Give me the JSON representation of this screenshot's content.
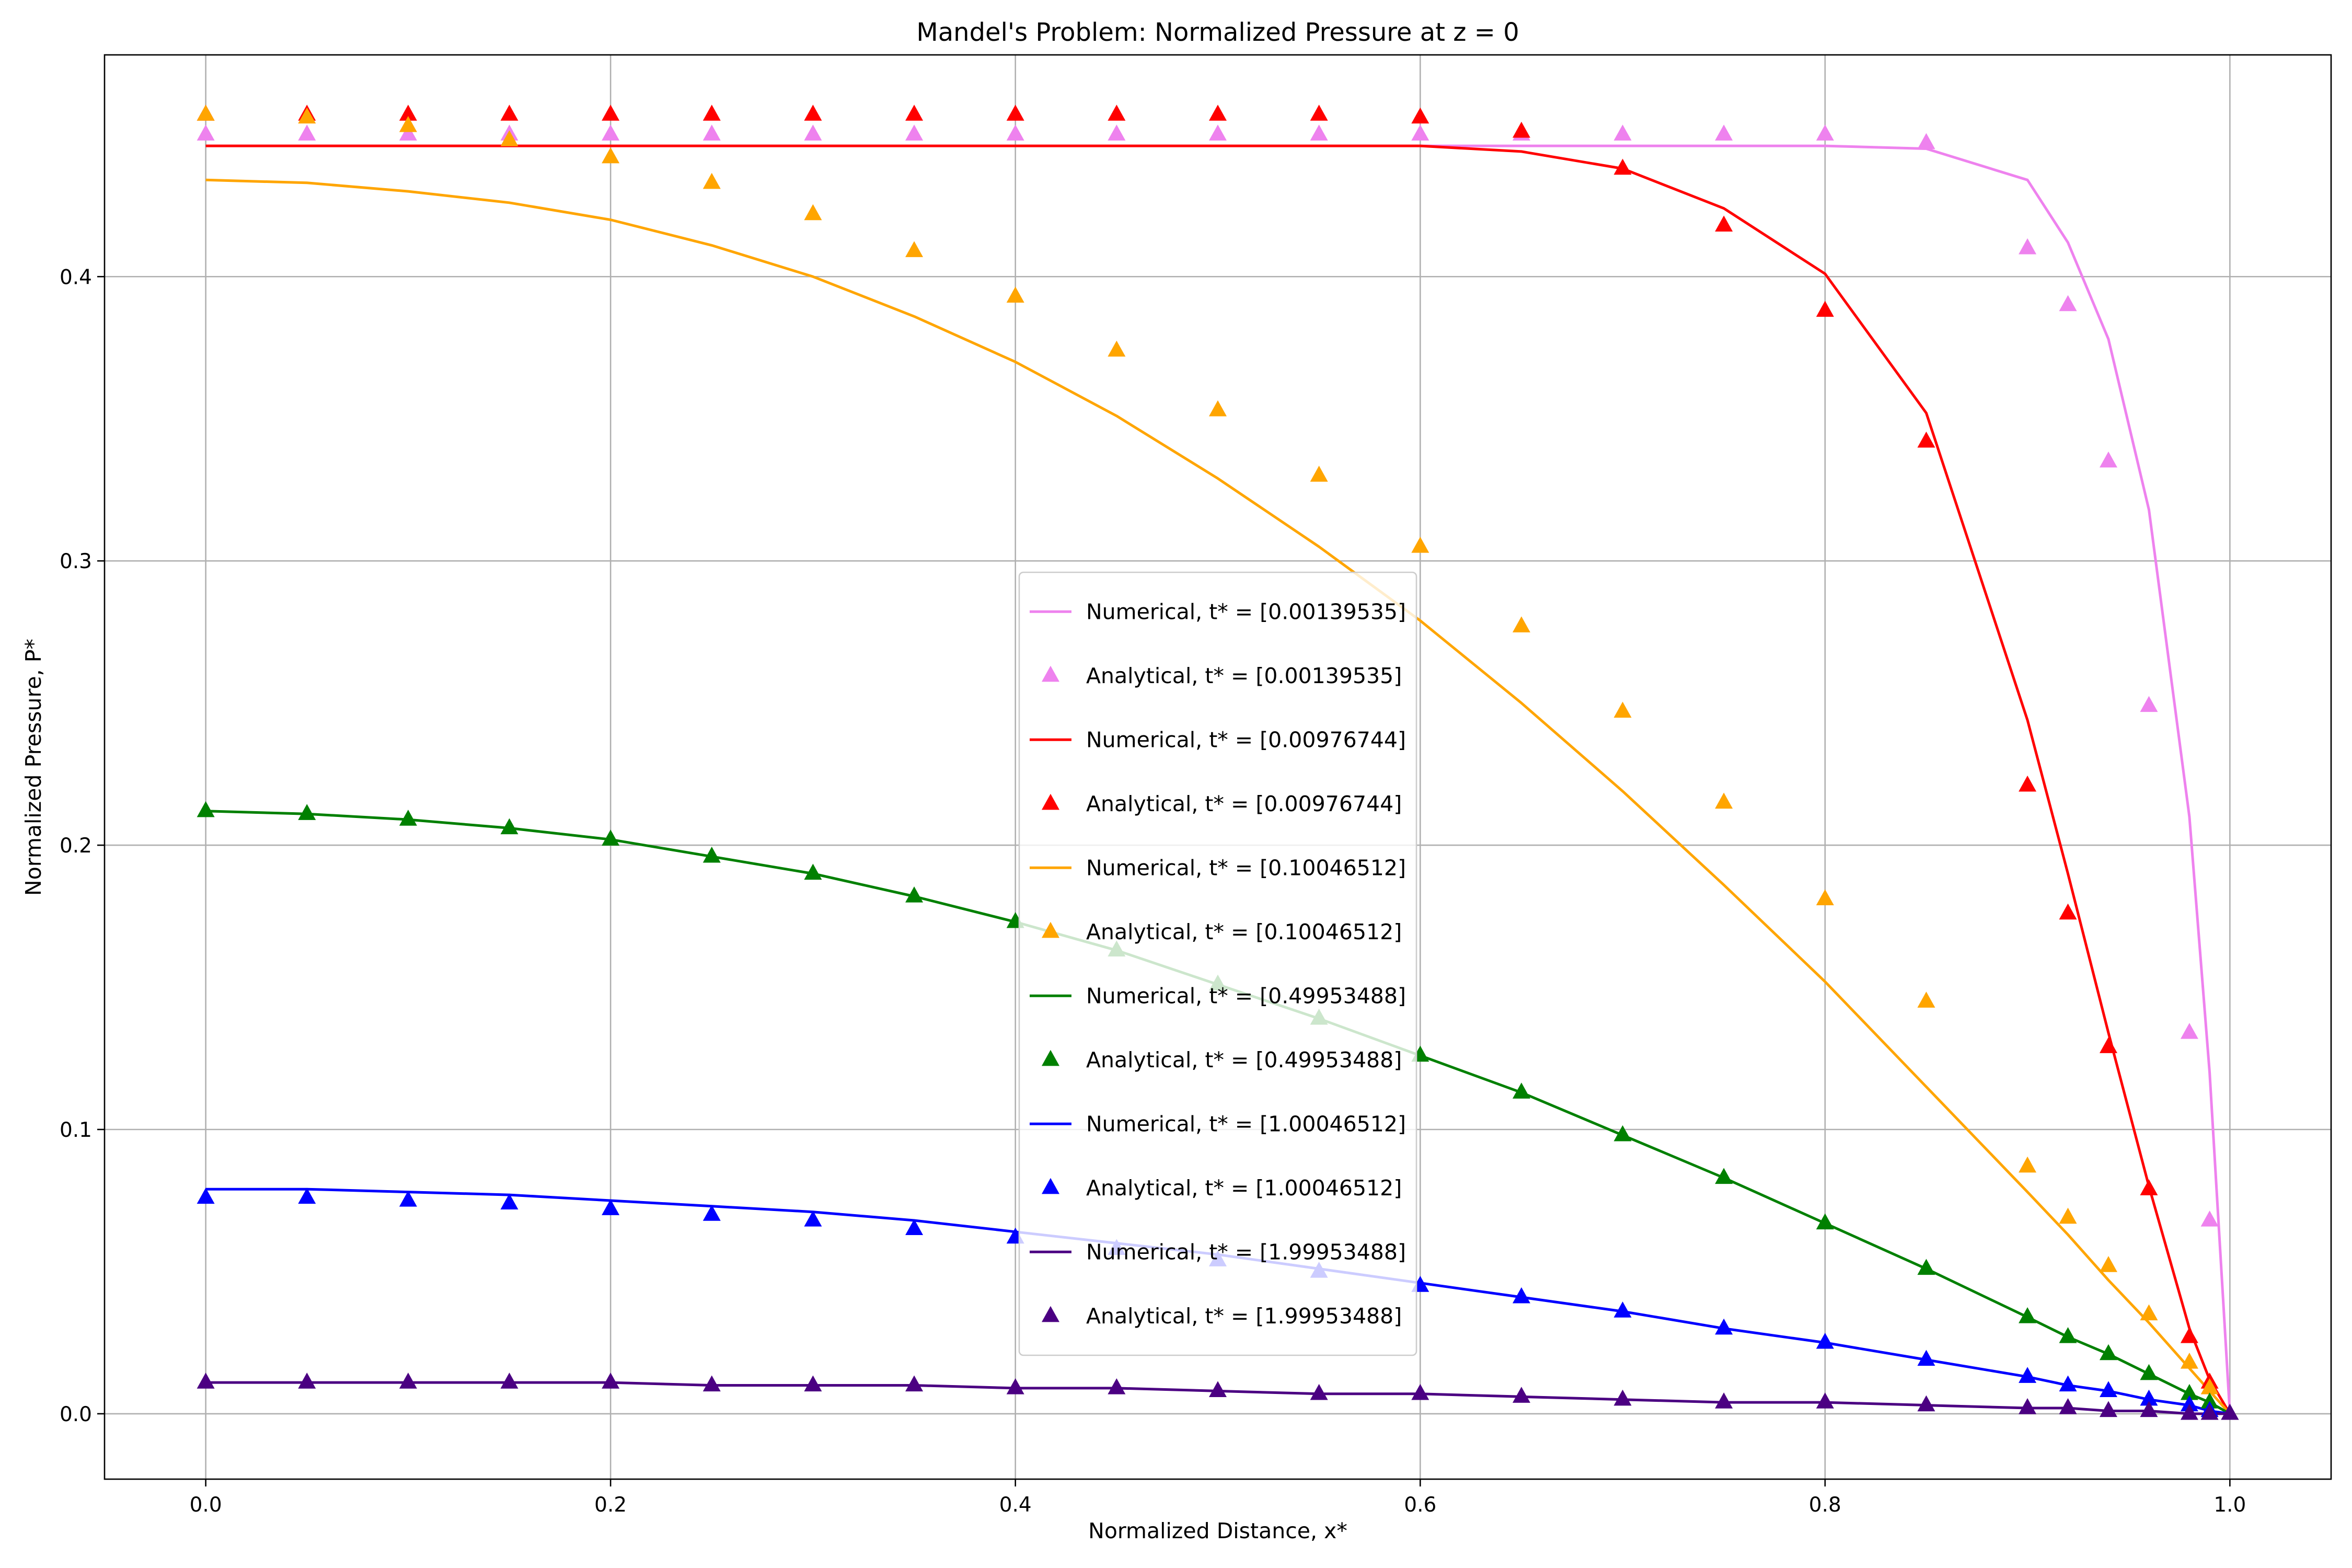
{
  "chart_data": {
    "type": "line",
    "title": "Mandel's Problem: Normalized Pressure at z = 0",
    "xlabel": "Normalized Distance, x*",
    "ylabel": "Normalized Pressure, P*",
    "xlim": [
      -0.05,
      1.05
    ],
    "ylim": [
      -0.023,
      0.478
    ],
    "xticks": [
      0.0,
      0.2,
      0.4,
      0.6,
      0.8,
      1.0
    ],
    "xtick_labels": [
      "0.0",
      "0.2",
      "0.4",
      "0.6",
      "0.8",
      "1.0"
    ],
    "yticks": [
      0.0,
      0.1,
      0.2,
      0.3,
      0.4
    ],
    "ytick_labels": [
      "0.0",
      "0.1",
      "0.2",
      "0.3",
      "0.4"
    ],
    "grid": true,
    "legend_position": "center",
    "x": [
      0.0,
      0.05,
      0.1,
      0.15,
      0.2,
      0.25,
      0.3,
      0.35,
      0.4,
      0.45,
      0.5,
      0.55,
      0.6,
      0.65,
      0.7,
      0.75,
      0.8,
      0.85,
      0.9,
      0.92,
      0.94,
      0.96,
      0.98,
      0.99,
      1.0
    ],
    "series": [
      {
        "name": "Numerical, t* = [0.00139535]",
        "kind": "line",
        "color": "#ee82ee",
        "values": [
          0.446,
          0.446,
          0.446,
          0.446,
          0.446,
          0.446,
          0.446,
          0.446,
          0.446,
          0.446,
          0.446,
          0.446,
          0.446,
          0.446,
          0.446,
          0.446,
          0.446,
          0.445,
          0.434,
          0.412,
          0.378,
          0.318,
          0.21,
          0.12,
          0.0
        ]
      },
      {
        "name": "Analytical, t* = [0.00139535]",
        "kind": "markers",
        "color": "#ee82ee",
        "values": [
          0.45,
          0.45,
          0.45,
          0.45,
          0.45,
          0.45,
          0.45,
          0.45,
          0.45,
          0.45,
          0.45,
          0.45,
          0.45,
          0.45,
          0.45,
          0.45,
          0.45,
          0.447,
          0.41,
          0.39,
          0.335,
          0.249,
          0.134,
          0.068,
          0.0
        ]
      },
      {
        "name": "Numerical, t* = [0.00976744]",
        "kind": "line",
        "color": "#ff0000",
        "values": [
          0.446,
          0.446,
          0.446,
          0.446,
          0.446,
          0.446,
          0.446,
          0.446,
          0.446,
          0.446,
          0.446,
          0.446,
          0.446,
          0.444,
          0.438,
          0.424,
          0.401,
          0.352,
          0.244,
          0.19,
          0.134,
          0.08,
          0.03,
          0.012,
          0.0
        ]
      },
      {
        "name": "Analytical, t* = [0.00976744]",
        "kind": "markers",
        "color": "#ff0000",
        "values": [
          0.457,
          0.457,
          0.457,
          0.457,
          0.457,
          0.457,
          0.457,
          0.457,
          0.457,
          0.457,
          0.457,
          0.457,
          0.456,
          0.451,
          0.438,
          0.418,
          0.388,
          0.342,
          0.221,
          0.176,
          0.129,
          0.079,
          0.027,
          0.011,
          0.0
        ]
      },
      {
        "name": "Numerical, t* = [0.10046512]",
        "kind": "line",
        "color": "#ffa500",
        "values": [
          0.434,
          0.433,
          0.43,
          0.426,
          0.42,
          0.411,
          0.4,
          0.386,
          0.37,
          0.351,
          0.329,
          0.305,
          0.279,
          0.25,
          0.219,
          0.186,
          0.152,
          0.115,
          0.078,
          0.063,
          0.047,
          0.032,
          0.016,
          0.008,
          0.0
        ]
      },
      {
        "name": "Analytical, t* = [0.10046512]",
        "kind": "markers",
        "color": "#ffa500",
        "values": [
          0.457,
          0.456,
          0.453,
          0.448,
          0.442,
          0.433,
          0.422,
          0.409,
          0.393,
          0.374,
          0.353,
          0.33,
          0.305,
          0.277,
          0.247,
          0.215,
          0.181,
          0.145,
          0.087,
          0.069,
          0.052,
          0.035,
          0.018,
          0.009,
          0.0
        ]
      },
      {
        "name": "Numerical, t* = [0.49953488]",
        "kind": "line",
        "color": "#008000",
        "values": [
          0.212,
          0.211,
          0.209,
          0.206,
          0.202,
          0.196,
          0.19,
          0.182,
          0.173,
          0.163,
          0.151,
          0.139,
          0.126,
          0.113,
          0.098,
          0.083,
          0.067,
          0.051,
          0.034,
          0.027,
          0.021,
          0.014,
          0.007,
          0.004,
          0.0
        ]
      },
      {
        "name": "Analytical, t* = [0.49953488]",
        "kind": "markers",
        "color": "#008000",
        "values": [
          0.212,
          0.211,
          0.209,
          0.206,
          0.202,
          0.196,
          0.19,
          0.182,
          0.173,
          0.163,
          0.151,
          0.139,
          0.126,
          0.113,
          0.098,
          0.083,
          0.067,
          0.051,
          0.034,
          0.027,
          0.021,
          0.014,
          0.007,
          0.004,
          0.0
        ]
      },
      {
        "name": "Numerical, t* = [1.00046512]",
        "kind": "line",
        "color": "#0000ff",
        "values": [
          0.079,
          0.079,
          0.078,
          0.077,
          0.075,
          0.073,
          0.071,
          0.068,
          0.064,
          0.06,
          0.056,
          0.051,
          0.046,
          0.041,
          0.036,
          0.03,
          0.025,
          0.019,
          0.013,
          0.01,
          0.008,
          0.005,
          0.003,
          0.001,
          0.0
        ]
      },
      {
        "name": "Analytical, t* = [1.00046512]",
        "kind": "markers",
        "color": "#0000ff",
        "values": [
          0.076,
          0.076,
          0.075,
          0.074,
          0.072,
          0.07,
          0.068,
          0.065,
          0.062,
          0.058,
          0.054,
          0.05,
          0.045,
          0.041,
          0.036,
          0.03,
          0.025,
          0.019,
          0.013,
          0.01,
          0.008,
          0.005,
          0.003,
          0.001,
          0.0
        ]
      },
      {
        "name": "Numerical, t* = [1.99953488]",
        "kind": "line",
        "color": "#4b0082",
        "values": [
          0.011,
          0.011,
          0.011,
          0.011,
          0.011,
          0.01,
          0.01,
          0.01,
          0.009,
          0.009,
          0.008,
          0.007,
          0.007,
          0.006,
          0.005,
          0.004,
          0.004,
          0.003,
          0.002,
          0.002,
          0.001,
          0.001,
          0.0,
          0.0,
          0.0
        ]
      },
      {
        "name": "Analytical, t* = [1.99953488]",
        "kind": "markers",
        "color": "#4b0082",
        "values": [
          0.011,
          0.011,
          0.011,
          0.011,
          0.011,
          0.01,
          0.01,
          0.01,
          0.009,
          0.009,
          0.008,
          0.007,
          0.007,
          0.006,
          0.005,
          0.004,
          0.004,
          0.003,
          0.002,
          0.002,
          0.001,
          0.001,
          0.0,
          0.0,
          0.0
        ]
      }
    ]
  }
}
